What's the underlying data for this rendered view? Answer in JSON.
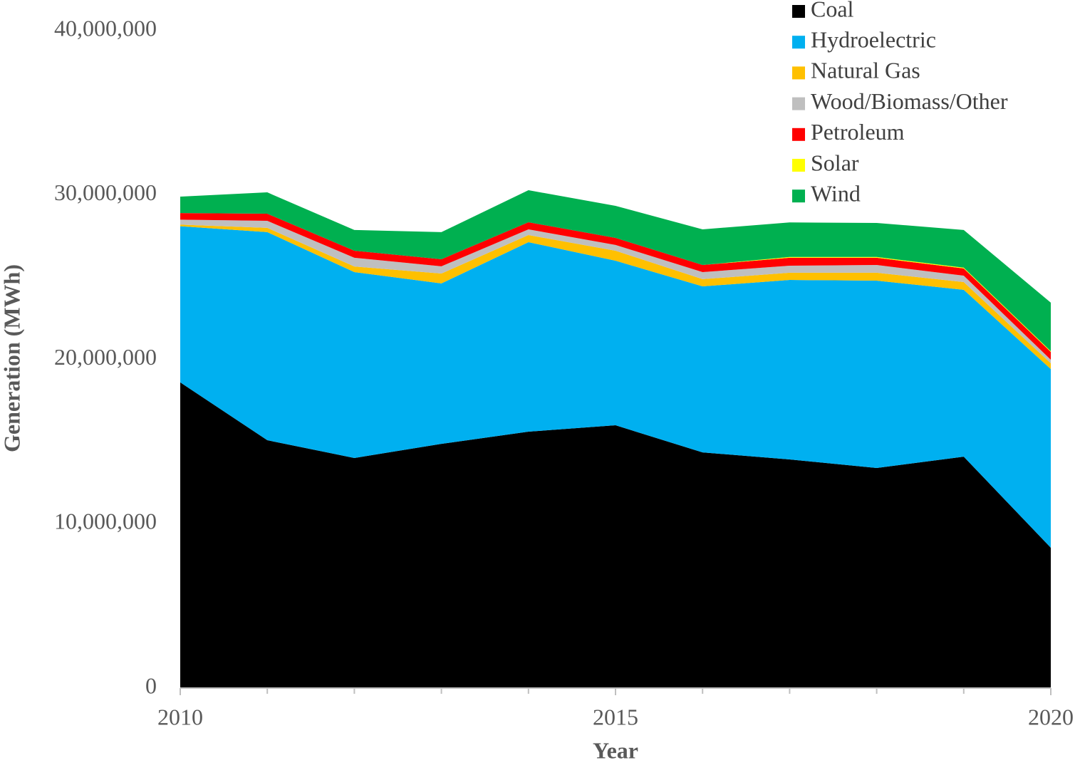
{
  "chart_data": {
    "type": "stacked_area",
    "x_label": "Year",
    "y_label": "Generation (MWh)",
    "x": [
      2010,
      2011,
      2012,
      2013,
      2014,
      2015,
      2016,
      2017,
      2018,
      2019,
      2020
    ],
    "xlim": [
      2010,
      2020
    ],
    "xticks": [
      2010,
      2015,
      2020
    ],
    "ylim": [
      0,
      40000000
    ],
    "yticks": [
      0,
      {
        "value": 10000000,
        "label": "10,000,000"
      },
      {
        "value": 20000000,
        "label": "20,000,000"
      },
      {
        "value": 30000000,
        "label": "30,000,000"
      },
      {
        "value": 40000000,
        "label": "40,000,000"
      }
    ],
    "legend": "top-right",
    "series": [
      {
        "name": "Coal",
        "color": "#000000",
        "values": [
          18600000,
          15080000,
          14000000,
          14860000,
          15600000,
          15990000,
          14340000,
          13910000,
          13390000,
          14080000,
          8540000
        ]
      },
      {
        "name": "Hydroelectric",
        "color": "#00b0f0",
        "values": [
          9500000,
          12660000,
          11310000,
          9760000,
          11530000,
          10010000,
          10100000,
          10920000,
          11400000,
          10150000,
          10870000
        ]
      },
      {
        "name": "Natural Gas",
        "color": "#ffc000",
        "values": [
          100000,
          260000,
          340000,
          600000,
          430000,
          610000,
          440000,
          440000,
          480000,
          470000,
          350000
        ]
      },
      {
        "name": "Wood/Biomass/Other",
        "color": "#bfbfbf",
        "values": [
          300000,
          430000,
          530000,
          440000,
          350000,
          350000,
          430000,
          430000,
          470000,
          390000,
          220000
        ]
      },
      {
        "name": "Petroleum",
        "color": "#ff0000",
        "values": [
          400000,
          430000,
          430000,
          430000,
          430000,
          430000,
          430000,
          480000,
          440000,
          440000,
          470000
        ]
      },
      {
        "name": "Solar",
        "color": "#ffff00",
        "values": [
          0,
          0,
          0,
          0,
          0,
          0,
          0,
          50000,
          50000,
          50000,
          50000
        ]
      },
      {
        "name": "Wind",
        "color": "#00b050",
        "values": [
          1000000,
          1300000,
          1260000,
          1650000,
          1950000,
          1950000,
          2170000,
          2100000,
          2070000,
          2290000,
          2950000
        ]
      }
    ]
  }
}
